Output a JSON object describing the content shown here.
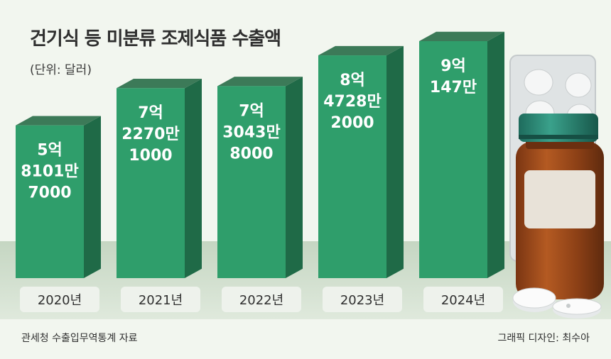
{
  "title": "건기식 등 미분류 조제식품 수출액",
  "unit_label": "(단위: 달러)",
  "source": "관세청 수출입무역통계 자료",
  "credit": "그래픽 디자인: 최수아",
  "colors": {
    "bar_front": "#2f9e6b",
    "bar_side": "#1f6a47",
    "bar_top": "#3c7a58",
    "label_bg": "#eef2ec",
    "ground": "#c9d8c6",
    "background": "#f2f6ef"
  },
  "chart_data": {
    "type": "bar",
    "categories": [
      "2020년",
      "2021년",
      "2022년",
      "2023년",
      "2024년"
    ],
    "values": [
      581017000,
      722701000,
      730438000,
      847282000,
      901470000
    ],
    "value_labels": [
      [
        "5억",
        "8101만",
        "7000"
      ],
      [
        "7억",
        "2270만",
        "1000"
      ],
      [
        "7억",
        "3043만",
        "8000"
      ],
      [
        "8억",
        "4728만",
        "2000"
      ],
      [
        "9억",
        "147만"
      ]
    ],
    "ylim": [
      0,
      950000000
    ],
    "grid": false,
    "legend": "none"
  }
}
